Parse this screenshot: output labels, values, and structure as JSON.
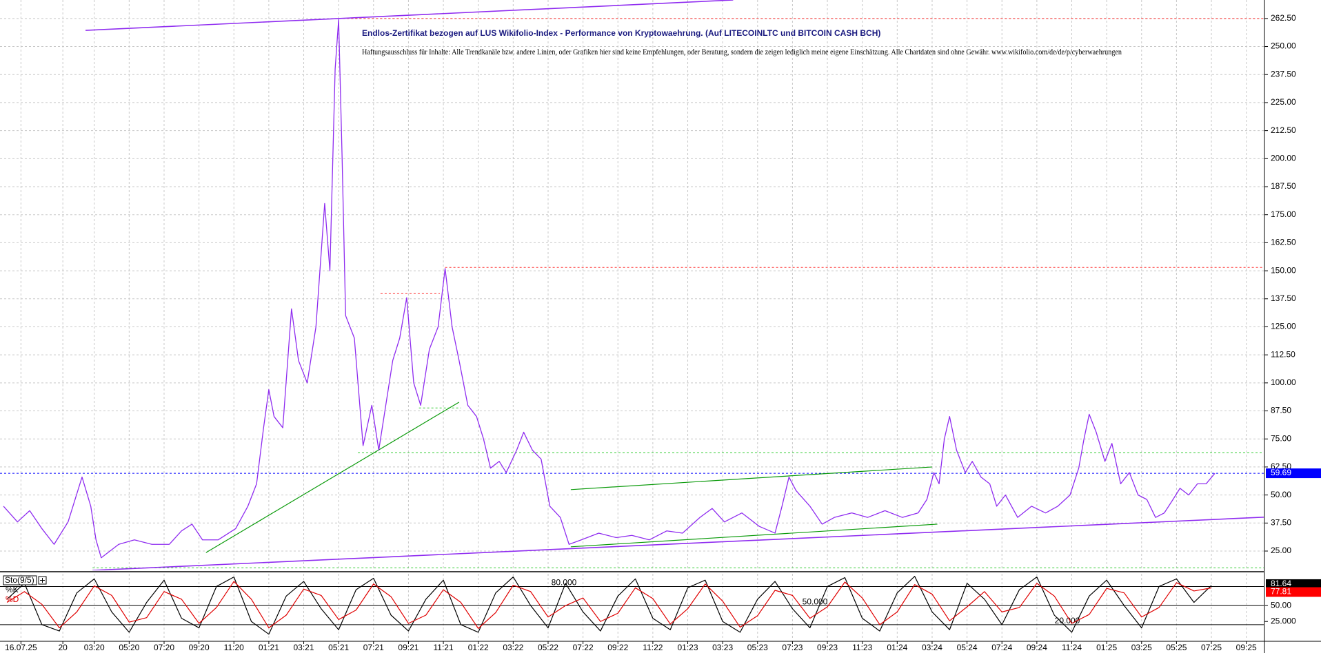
{
  "chart_data": [
    {
      "type": "line",
      "title": "Endlos-Zertifikat bezogen auf LUS Wikifolio-Index - Performance von Kryptowaehrung. (Auf LITECOINLTC und BITCOIN CASH BCH)",
      "subtitle": "Haftungsausschluss für Inhalte: Alle Trendkanäle bzw. andere Linien, oder Grafiken hier sind keine Empfehlungen, oder Beratung, sondern die zeigen lediglich meine eigene Einschätzung. Alle Chartdaten sind ohne Gewähr.  www.wikifolio.com/de/de/p/cyberwaehrungen",
      "x": [
        -3.2,
        -2.4,
        -1.7,
        -1.0,
        -0.3,
        0.5,
        1.3,
        1.8,
        2.1,
        2.4,
        3.4,
        4.3,
        5.3,
        6.3,
        7.0,
        7.6,
        8.2,
        9.1,
        10.1,
        10.8,
        11.3,
        11.7,
        12.0,
        12.3,
        12.8,
        13.3,
        13.7,
        14.2,
        14.7,
        15.2,
        15.5,
        15.8,
        16.0,
        16.2,
        16.4,
        16.9,
        17.4,
        17.9,
        18.3,
        19.1,
        19.5,
        19.9,
        20.3,
        20.7,
        21.2,
        21.7,
        22.1,
        22.5,
        22.9,
        23.4,
        23.9,
        24.3,
        24.7,
        25.2,
        25.6,
        26.2,
        26.6,
        27.1,
        27.6,
        28.1,
        28.7,
        29.2,
        29.9,
        30.9,
        31.9,
        32.8,
        33.8,
        34.8,
        35.7,
        36.7,
        37.4,
        38.1,
        39.1,
        40.1,
        41.0,
        41.4,
        41.8,
        42.2,
        43.0,
        43.7,
        44.4,
        45.4,
        46.3,
        47.3,
        48.3,
        49.2,
        49.7,
        50.1,
        50.4,
        50.7,
        51.0,
        51.4,
        51.9,
        52.3,
        52.8,
        53.3,
        53.7,
        54.2,
        54.9,
        55.7,
        56.5,
        57.2,
        57.9,
        58.4,
        58.7,
        59.0,
        59.4,
        59.9,
        60.3,
        60.8,
        61.3,
        61.8,
        62.3,
        62.8,
        63.3,
        63.8,
        64.2,
        64.7,
        65.2,
        65.7,
        66.2
      ],
      "values": [
        45,
        38,
        43,
        35,
        28,
        38,
        58,
        45,
        30,
        22,
        28,
        30,
        28,
        28,
        34,
        37,
        30,
        30,
        35,
        45,
        55,
        80,
        97,
        85,
        80,
        133,
        110,
        100,
        125,
        180,
        150,
        240,
        262,
        200,
        130,
        120,
        72,
        90,
        70,
        110,
        120,
        138,
        100,
        90,
        115,
        125,
        151,
        125,
        110,
        90,
        85,
        75,
        62,
        65,
        60,
        70,
        78,
        70,
        66,
        45,
        40,
        28,
        30,
        33,
        31,
        32,
        30,
        34,
        33,
        40,
        44,
        38,
        42,
        36,
        33,
        45,
        58,
        52,
        45,
        37,
        40,
        42,
        40,
        43,
        40,
        42,
        48,
        60,
        55,
        75,
        85,
        70,
        60,
        65,
        58,
        55,
        45,
        50,
        40,
        45,
        42,
        45,
        50,
        62,
        75,
        86,
        78,
        65,
        73,
        55,
        60,
        50,
        48,
        40,
        42,
        48,
        53,
        50,
        55,
        55,
        59.69
      ],
      "color": "#8f2cf0",
      "xlim": [
        -3.4,
        69
      ],
      "xticks": [
        {
          "value": -2.2,
          "label": "16.07.25"
        },
        {
          "value": 0.2,
          "label": "20"
        },
        {
          "value": 2,
          "label": "03:20"
        },
        {
          "value": 4,
          "label": "05:20"
        },
        {
          "value": 6,
          "label": "07:20"
        },
        {
          "value": 8,
          "label": "09:20"
        },
        {
          "value": 10,
          "label": "11:20"
        },
        {
          "value": 12,
          "label": "01:21"
        },
        {
          "value": 14,
          "label": "03:21"
        },
        {
          "value": 16,
          "label": "05:21"
        },
        {
          "value": 18,
          "label": "07:21"
        },
        {
          "value": 20,
          "label": "09:21"
        },
        {
          "value": 22,
          "label": "11:21"
        },
        {
          "value": 24,
          "label": "01:22"
        },
        {
          "value": 26,
          "label": "03:22"
        },
        {
          "value": 28,
          "label": "05:22"
        },
        {
          "value": 30,
          "label": "07:22"
        },
        {
          "value": 32,
          "label": "09:22"
        },
        {
          "value": 34,
          "label": "11:22"
        },
        {
          "value": 36,
          "label": "01:23"
        },
        {
          "value": 38,
          "label": "03:23"
        },
        {
          "value": 40,
          "label": "05:23"
        },
        {
          "value": 42,
          "label": "07:23"
        },
        {
          "value": 44,
          "label": "09:23"
        },
        {
          "value": 46,
          "label": "11:23"
        },
        {
          "value": 48,
          "label": "01:24"
        },
        {
          "value": 50,
          "label": "03:24"
        },
        {
          "value": 52,
          "label": "05:24"
        },
        {
          "value": 54,
          "label": "07:24"
        },
        {
          "value": 56,
          "label": "09:24"
        },
        {
          "value": 58,
          "label": "11:24"
        },
        {
          "value": 60,
          "label": "01:25"
        },
        {
          "value": 62,
          "label": "03:25"
        },
        {
          "value": 64,
          "label": "05:25"
        },
        {
          "value": 66,
          "label": "07:25"
        },
        {
          "value": 68,
          "label": "09:25"
        }
      ],
      "ylim": [
        16.4,
        270.75
      ],
      "yticks": [
        {
          "value": 25,
          "label": "25.00"
        },
        {
          "value": 37.5,
          "label": "37.50"
        },
        {
          "value": 50,
          "label": "50.00"
        },
        {
          "value": 62.5,
          "label": "62.50"
        },
        {
          "value": 75,
          "label": "75.00"
        },
        {
          "value": 87.5,
          "label": "87.50"
        },
        {
          "value": 100,
          "label": "100.00"
        },
        {
          "value": 112.5,
          "label": "112.50"
        },
        {
          "value": 125,
          "label": "125.00"
        },
        {
          "value": 137.5,
          "label": "137.50"
        },
        {
          "value": 150,
          "label": "150.00"
        },
        {
          "value": 162.5,
          "label": "162.50"
        },
        {
          "value": 175,
          "label": "175.00"
        },
        {
          "value": 187.5,
          "label": "187.50"
        },
        {
          "value": 200,
          "label": "200.00"
        },
        {
          "value": 212.5,
          "label": "212.50"
        },
        {
          "value": 225,
          "label": "225.00"
        },
        {
          "value": 237.5,
          "label": "237.50"
        },
        {
          "value": 250,
          "label": "250.00"
        },
        {
          "value": 262.5,
          "label": "262.50"
        }
      ],
      "grid": true,
      "trendlines": [
        {
          "points": [
            [
              1.5,
              257.2
            ],
            [
              38.6,
              270.75
            ]
          ],
          "color": "#8f2cf0"
        },
        {
          "points": [
            [
              1.9,
              16.4
            ],
            [
              69,
              40.1
            ]
          ],
          "color": "#8f2cf0"
        },
        {
          "points": [
            [
              8.4,
              24.3
            ],
            [
              22.9,
              91.4
            ]
          ],
          "color": "#0a9a0a"
        },
        {
          "points": [
            [
              29.3,
              52.4
            ],
            [
              50.0,
              62.5
            ]
          ],
          "color": "#0a9a0a"
        },
        {
          "points": [
            [
              29.3,
              26.9
            ],
            [
              50.3,
              37.0
            ]
          ],
          "color": "#0a9a0a"
        }
      ],
      "levels": [
        {
          "value": 262.5,
          "from": 16.0,
          "to": 69,
          "color": "#ff3333"
        },
        {
          "value": 151.5,
          "from": 22.1,
          "to": 69,
          "color": "#ff3333"
        },
        {
          "value": 139.8,
          "from": 18.4,
          "to": 21.8,
          "color": "#ff3333"
        },
        {
          "value": 88.8,
          "from": 20.6,
          "to": 23.0,
          "color": "#33cc33"
        },
        {
          "value": 68.9,
          "from": 17.1,
          "to": 69,
          "color": "#33cc33"
        },
        {
          "value": 17.5,
          "from": 1.9,
          "to": 69,
          "color": "#33cc33"
        },
        {
          "value": 59.69,
          "from": -3.4,
          "to": 69,
          "color": "#0000ff"
        }
      ]
    },
    {
      "type": "line",
      "title": "Sto(9/5)",
      "x": [
        -3,
        -2,
        -1,
        0,
        1,
        2,
        3,
        4,
        5,
        6,
        7,
        8,
        9,
        10,
        11,
        12,
        13,
        14,
        15,
        16,
        17,
        18,
        19,
        20,
        21,
        22,
        23,
        24,
        25,
        26,
        27,
        28,
        29,
        30,
        31,
        32,
        33,
        34,
        35,
        36,
        37,
        38,
        39,
        40,
        41,
        42,
        43,
        44,
        45,
        46,
        47,
        48,
        49,
        50,
        51,
        52,
        53,
        54,
        55,
        56,
        57,
        58,
        59,
        60,
        61,
        62,
        63,
        64,
        65,
        66
      ],
      "series": [
        {
          "name": "%K",
          "color": "#000000",
          "values": [
            60,
            85,
            20,
            10,
            70,
            92,
            40,
            8,
            55,
            90,
            30,
            15,
            80,
            95,
            25,
            5,
            65,
            88,
            45,
            12,
            75,
            93,
            35,
            10,
            60,
            90,
            20,
            8,
            70,
            95,
            50,
            15,
            85,
            40,
            10,
            65,
            92,
            30,
            12,
            78,
            90,
            25,
            8,
            60,
            88,
            45,
            15,
            80,
            94,
            30,
            10,
            70,
            96,
            40,
            12,
            85,
            60,
            20,
            75,
            95,
            35,
            8,
            65,
            90,
            50,
            15,
            80,
            92,
            55,
            81.64
          ]
        },
        {
          "name": "%D",
          "color": "#e00000",
          "values": [
            55,
            72,
            52,
            15,
            40,
            81,
            66,
            24,
            31,
            72,
            60,
            22,
            47,
            88,
            60,
            15,
            35,
            76,
            66,
            28,
            43,
            84,
            64,
            22,
            35,
            75,
            55,
            14,
            39,
            82,
            72,
            32,
            50,
            62,
            25,
            38,
            78,
            61,
            21,
            45,
            84,
            57,
            16,
            34,
            74,
            66,
            30,
            48,
            87,
            62,
            20,
            40,
            83,
            68,
            26,
            48,
            72,
            40,
            47,
            85,
            65,
            22,
            36,
            77,
            70,
            32,
            47,
            86,
            73,
            77.81
          ]
        }
      ],
      "ylim": [
        -4,
        100
      ],
      "yticks": [
        {
          "value": 25,
          "label": "25.000"
        },
        {
          "value": 50,
          "label": "50.00"
        }
      ],
      "levels": [
        {
          "value": 80,
          "label": "80.000"
        },
        {
          "value": 50,
          "label": "50.000"
        },
        {
          "value": 20,
          "label": "20.000"
        }
      ]
    }
  ]
}
